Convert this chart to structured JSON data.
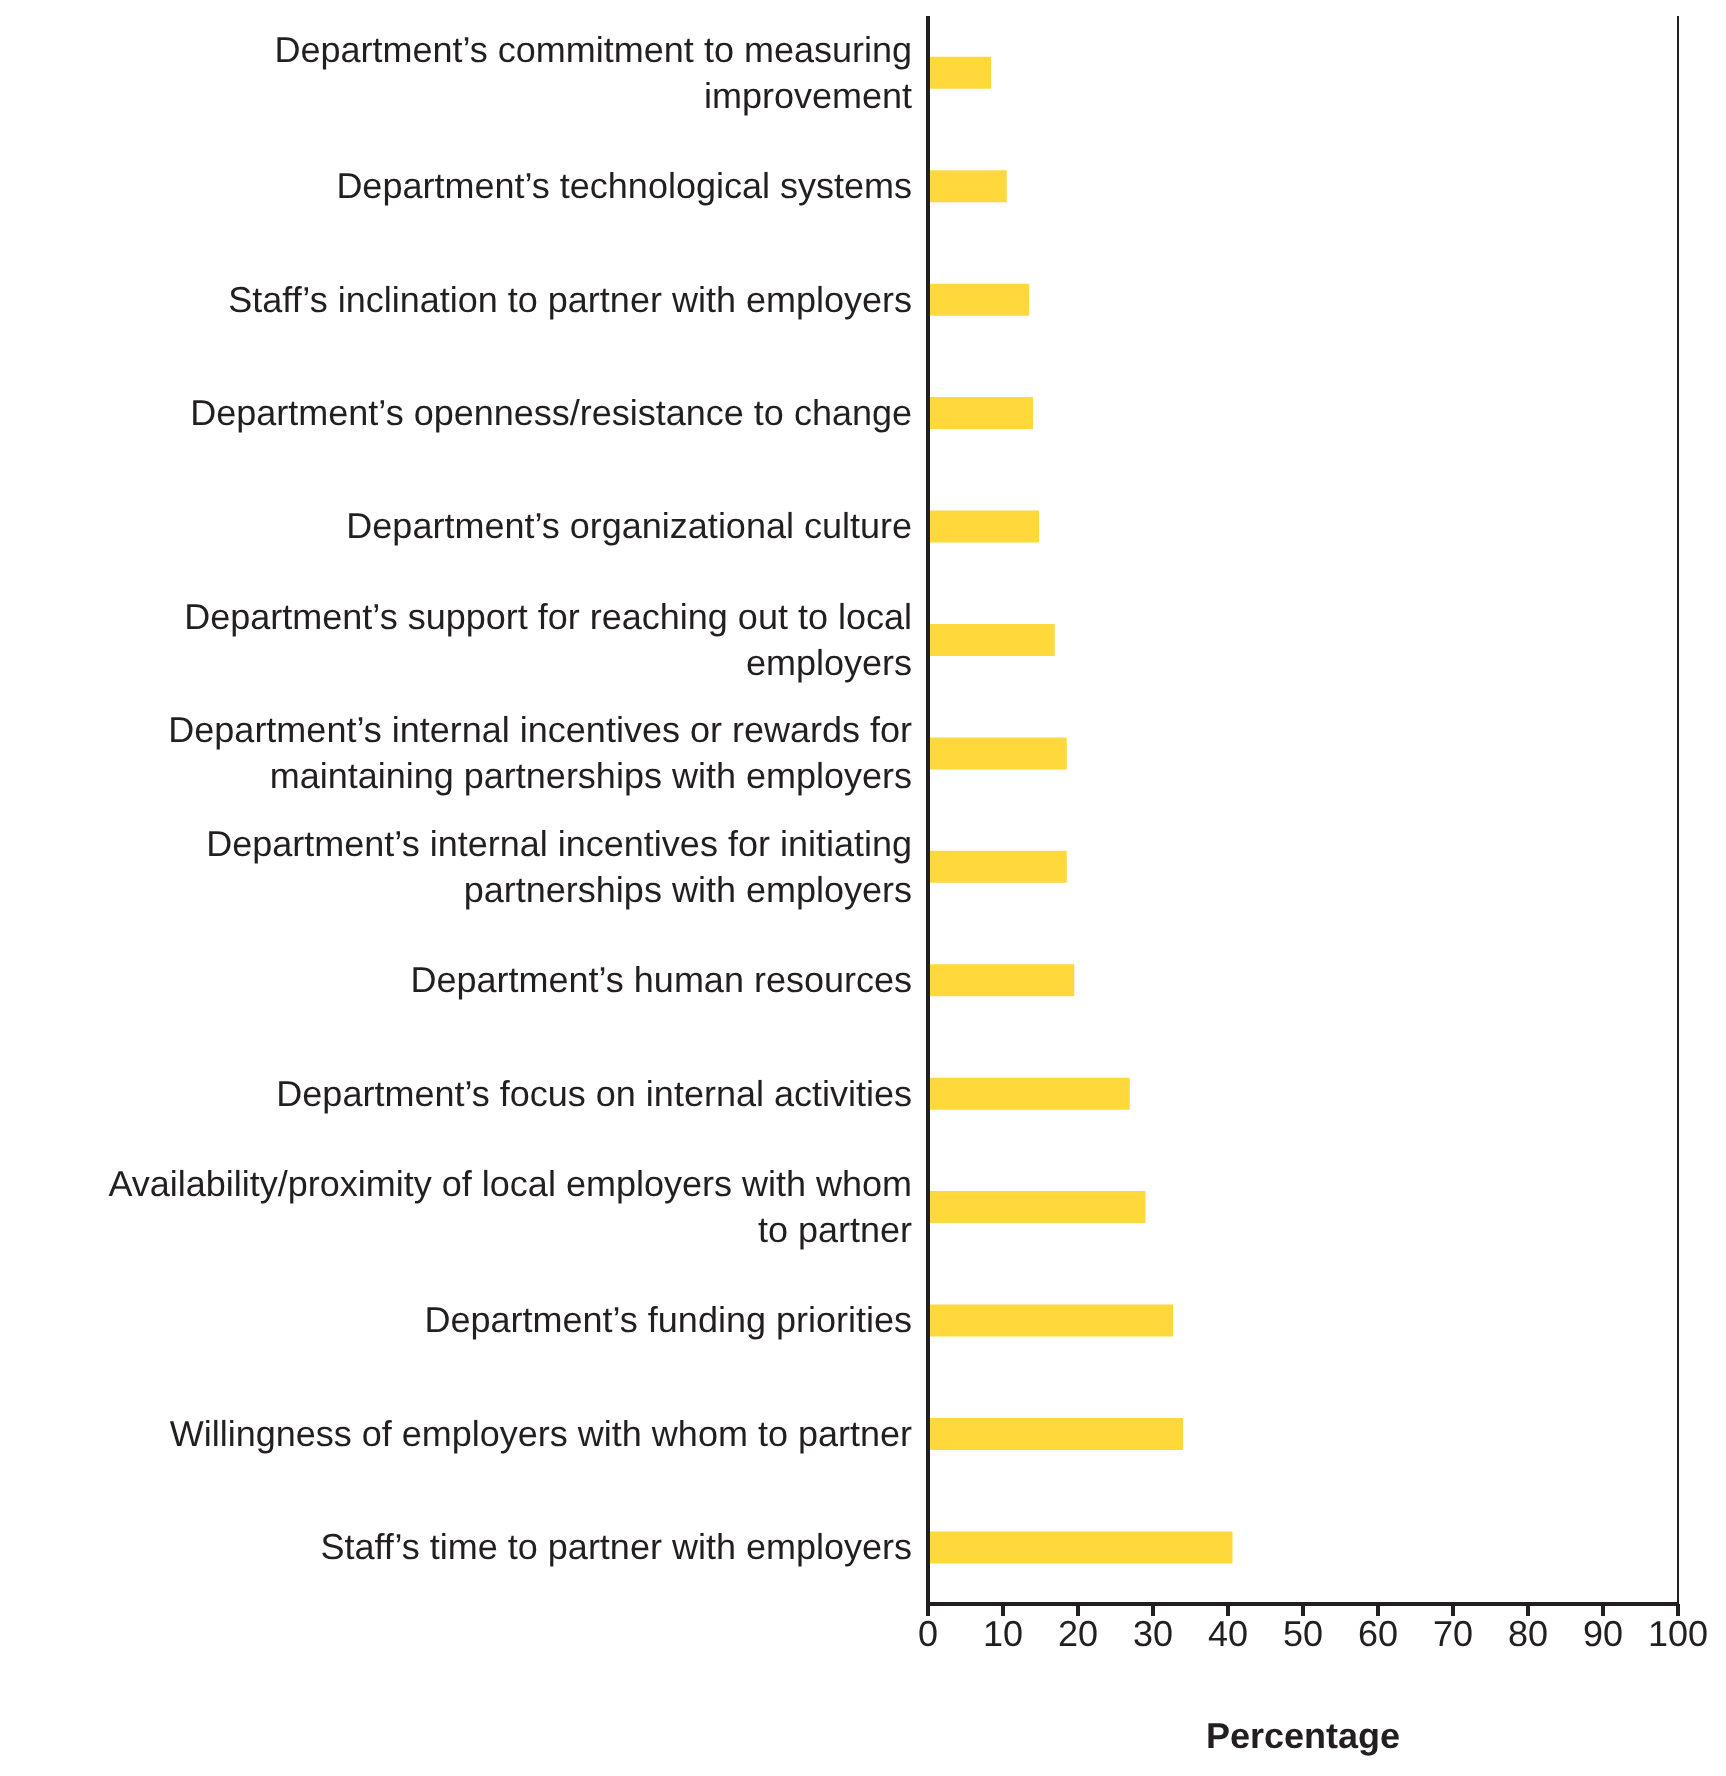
{
  "chart_data": {
    "type": "bar",
    "orientation": "horizontal",
    "xlabel": "Percentage",
    "categories": [
      "Department’s commitment to measuring improvement",
      "Department’s technological systems",
      "Staff’s inclination to partner with employers",
      "Department’s openness/resistance to change",
      "Department’s organizational culture",
      "Department’s support for reaching out to local employers",
      "Department’s internal incentives or rewards for maintaining partnerships with employers",
      "Department’s internal incentives for initiating partnerships with employers",
      "Department’s human resources",
      "Department’s focus on internal activities",
      "Availability/proximity of local employers with whom to partner",
      "Department’s funding priorities",
      "Willingness of employers with whom to partner",
      "Staff’s time to partner with employers"
    ],
    "values": [
      8.4,
      10.5,
      13.5,
      14,
      14.8,
      16.9,
      18.5,
      18.5,
      19.5,
      26.9,
      29,
      32.7,
      34,
      40.6
    ],
    "color": "#ffd83c",
    "xlim": [
      0,
      100
    ],
    "xticks": [
      0,
      10,
      20,
      30,
      40,
      50,
      60,
      70,
      80,
      90,
      100
    ],
    "grid": false,
    "legend": false
  }
}
